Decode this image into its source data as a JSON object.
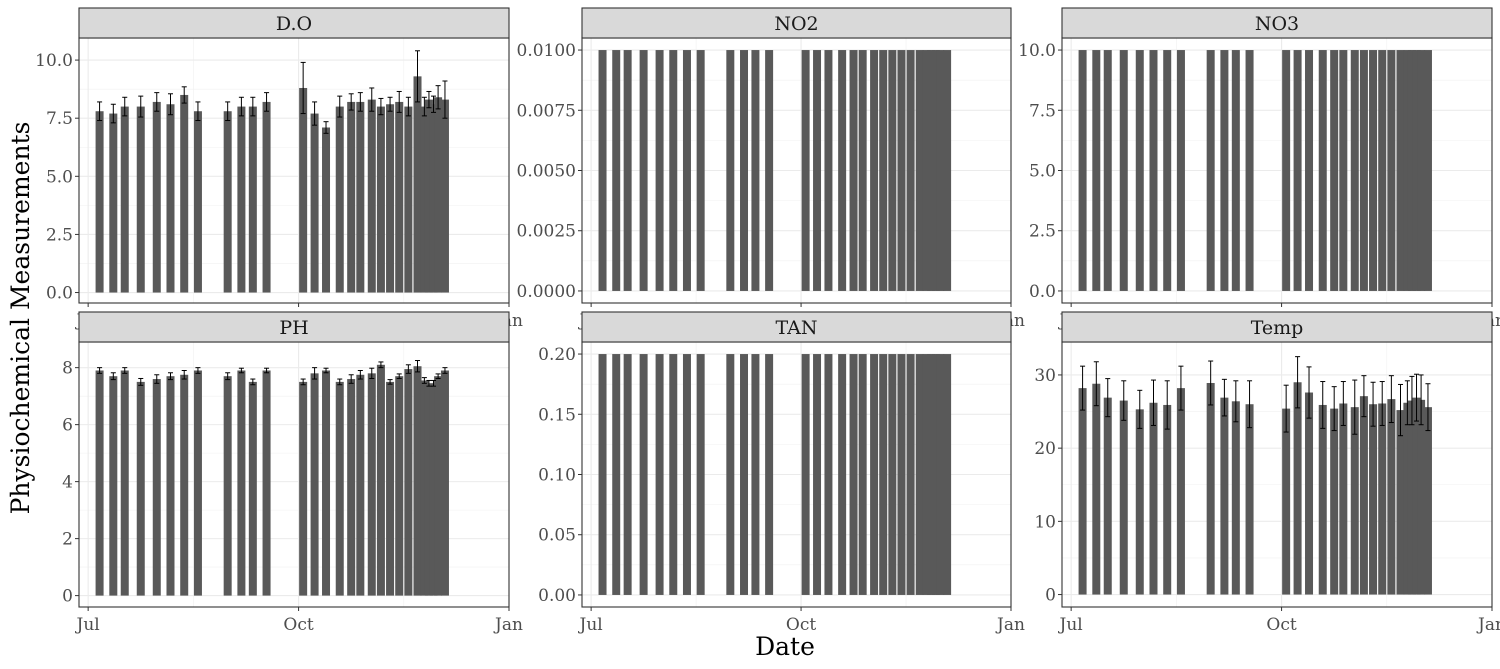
{
  "chart_data": {
    "type": "bar",
    "xlabel": "Date",
    "ylabel": "Physiochemical Measurements",
    "x_ticks": [
      "Jul",
      "Oct",
      "Jan"
    ],
    "x_tick_dates": [
      "2024-07-01",
      "2024-10-01",
      "2025-01-01"
    ],
    "x_range": [
      "2024-06-27",
      "2025-01-01"
    ],
    "dates": [
      "2024-07-06",
      "2024-07-12",
      "2024-07-17",
      "2024-07-24",
      "2024-07-31",
      "2024-08-06",
      "2024-08-12",
      "2024-08-18",
      "2024-08-31",
      "2024-09-06",
      "2024-09-11",
      "2024-09-17",
      "2024-10-03",
      "2024-10-08",
      "2024-10-13",
      "2024-10-19",
      "2024-10-24",
      "2024-10-28",
      "2024-11-02",
      "2024-11-06",
      "2024-11-10",
      "2024-11-14",
      "2024-11-18",
      "2024-11-22",
      "2024-11-25",
      "2024-11-27",
      "2024-11-29",
      "2024-12-01",
      "2024-12-04"
    ],
    "grid": true,
    "legend": "none",
    "panels": [
      {
        "name": "D.O",
        "ylim": [
          -0.45,
          10.95
        ],
        "yticks": [
          "0.0",
          "2.5",
          "5.0",
          "7.5",
          "10.0"
        ],
        "ytick_values": [
          0,
          2.5,
          5,
          7.5,
          10
        ],
        "values": [
          7.8,
          7.7,
          8.0,
          8.0,
          8.2,
          8.1,
          8.5,
          7.8,
          7.8,
          8.0,
          8.0,
          8.2,
          8.8,
          7.7,
          7.1,
          8.0,
          8.2,
          8.2,
          8.3,
          8.0,
          8.1,
          8.2,
          8.0,
          9.3,
          8.0,
          8.3,
          8.1,
          8.4,
          8.3
        ],
        "errors": [
          0.4,
          0.4,
          0.4,
          0.45,
          0.4,
          0.45,
          0.35,
          0.4,
          0.4,
          0.4,
          0.4,
          0.4,
          1.1,
          0.5,
          0.25,
          0.45,
          0.35,
          0.4,
          0.5,
          0.35,
          0.3,
          0.45,
          0.4,
          1.1,
          0.4,
          0.35,
          0.35,
          0.5,
          0.8
        ]
      },
      {
        "name": "NO2",
        "ylim": [
          -0.0005,
          0.0105
        ],
        "yticks": [
          "0.0000",
          "0.0025",
          "0.0050",
          "0.0075",
          "0.0100"
        ],
        "ytick_values": [
          0,
          0.0025,
          0.005,
          0.0075,
          0.01
        ],
        "values": [
          0.01,
          0.01,
          0.01,
          0.01,
          0.01,
          0.01,
          0.01,
          0.01,
          0.01,
          0.01,
          0.01,
          0.01,
          0.01,
          0.01,
          0.01,
          0.01,
          0.01,
          0.01,
          0.01,
          0.01,
          0.01,
          0.01,
          0.01,
          0.01,
          0.01,
          0.01,
          0.01,
          0.01,
          0.01
        ],
        "errors": []
      },
      {
        "name": "NO3",
        "ylim": [
          -0.5,
          10.5
        ],
        "yticks": [
          "0.0",
          "2.5",
          "5.0",
          "7.5",
          "10.0"
        ],
        "ytick_values": [
          0,
          2.5,
          5,
          7.5,
          10
        ],
        "values": [
          10,
          10,
          10,
          10,
          10,
          10,
          10,
          10,
          10,
          10,
          10,
          10,
          10,
          10,
          10,
          10,
          10,
          10,
          10,
          10,
          10,
          10,
          10,
          10,
          10,
          10,
          10,
          10,
          10
        ],
        "errors": []
      },
      {
        "name": "PH",
        "ylim": [
          -0.4,
          8.9
        ],
        "yticks": [
          "0",
          "2",
          "4",
          "6",
          "8"
        ],
        "ytick_values": [
          0,
          2,
          4,
          6,
          8
        ],
        "values": [
          7.9,
          7.7,
          7.9,
          7.5,
          7.6,
          7.7,
          7.75,
          7.9,
          7.7,
          7.9,
          7.5,
          7.9,
          7.5,
          7.8,
          7.9,
          7.5,
          7.6,
          7.75,
          7.8,
          8.1,
          7.5,
          7.7,
          7.95,
          8.05,
          7.55,
          7.45,
          7.45,
          7.7,
          7.9
        ],
        "errors": [
          0.1,
          0.12,
          0.1,
          0.12,
          0.15,
          0.12,
          0.15,
          0.1,
          0.12,
          0.08,
          0.1,
          0.08,
          0.1,
          0.2,
          0.08,
          0.1,
          0.15,
          0.15,
          0.18,
          0.1,
          0.08,
          0.08,
          0.15,
          0.2,
          0.1,
          0.1,
          0.1,
          0.08,
          0.1
        ]
      },
      {
        "name": "TAN",
        "ylim": [
          -0.01,
          0.21
        ],
        "yticks": [
          "0.00",
          "0.05",
          "0.10",
          "0.15",
          "0.20"
        ],
        "ytick_values": [
          0,
          0.05,
          0.1,
          0.15,
          0.2
        ],
        "values": [
          0.2,
          0.2,
          0.2,
          0.2,
          0.2,
          0.2,
          0.2,
          0.2,
          0.2,
          0.2,
          0.2,
          0.2,
          0.2,
          0.2,
          0.2,
          0.2,
          0.2,
          0.2,
          0.2,
          0.2,
          0.2,
          0.2,
          0.2,
          0.2,
          0.2,
          0.2,
          0.2,
          0.2,
          0.2
        ],
        "errors": []
      },
      {
        "name": "Temp",
        "ylim": [
          -1.7,
          34.5
        ],
        "yticks": [
          "0",
          "10",
          "20",
          "30"
        ],
        "ytick_values": [
          0,
          10,
          20,
          30
        ],
        "values": [
          28.2,
          28.8,
          26.9,
          26.5,
          25.3,
          26.2,
          25.9,
          28.2,
          28.9,
          26.9,
          26.4,
          26.0,
          25.4,
          29.0,
          27.6,
          25.9,
          25.4,
          26.1,
          25.6,
          27.1,
          26.0,
          26.1,
          26.7,
          25.2,
          26.2,
          26.5,
          26.9,
          26.6,
          25.6
        ],
        "errors": [
          3.0,
          3.0,
          2.6,
          2.7,
          2.6,
          3.1,
          3.3,
          3.0,
          3.0,
          2.5,
          2.8,
          3.2,
          3.2,
          3.5,
          3.5,
          3.2,
          3.0,
          3.0,
          3.7,
          2.8,
          3.0,
          3.0,
          3.2,
          3.5,
          3.0,
          3.3,
          3.2,
          3.4,
          3.2
        ]
      }
    ]
  }
}
